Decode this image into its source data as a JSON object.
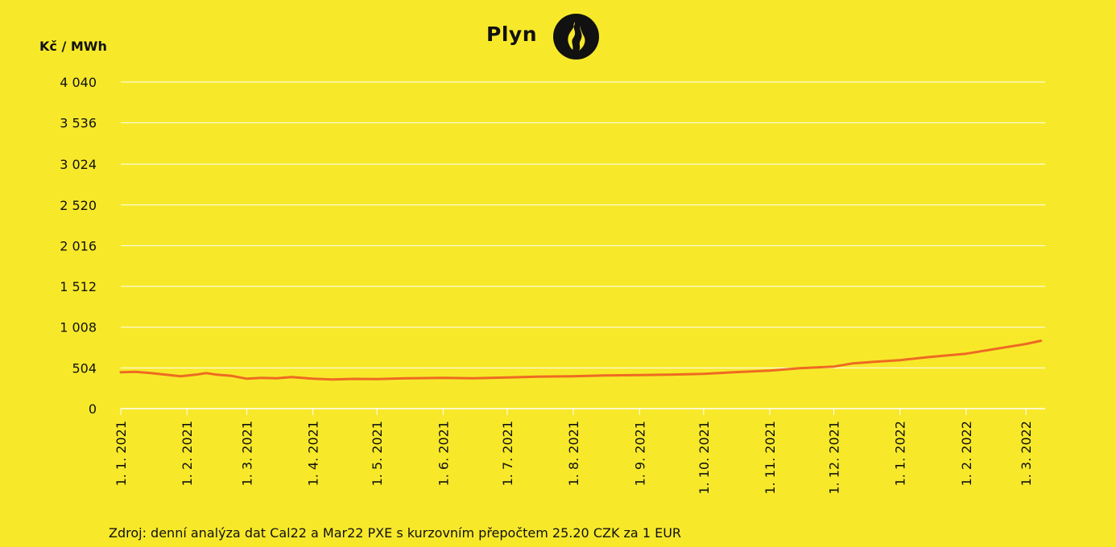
{
  "header": {
    "title": "Plyn",
    "unit_label": "Kč / MWh",
    "icon": "flame-icon"
  },
  "footer": {
    "source": "Zdroj: denní analýza dat Cal22 a Mar22 PXE s kurzovním přepočtem 25.20 CZK za 1 EUR"
  },
  "colors": {
    "background": "#F7E92A",
    "line": "#EE6A22",
    "grid": "#FFFFFF",
    "text": "#111111"
  },
  "chart_data": {
    "type": "line",
    "title": "Plyn",
    "ylabel": "Kč / MWh",
    "xlabel": "",
    "ylim": [
      0,
      4040
    ],
    "yticks": [
      0,
      504,
      1008,
      1512,
      2016,
      2520,
      3024,
      3536,
      4040
    ],
    "ytick_labels": [
      "0",
      "504",
      "1 008",
      "1 512",
      "2 016",
      "2 520",
      "3 024",
      "3 536",
      "4 040"
    ],
    "xlim": [
      "2021-01-01",
      "2022-03-10"
    ],
    "xticks": [
      "2021-01-01",
      "2021-02-01",
      "2021-03-01",
      "2021-04-01",
      "2021-05-01",
      "2021-06-01",
      "2021-07-01",
      "2021-08-01",
      "2021-09-01",
      "2021-10-01",
      "2021-11-01",
      "2021-12-01",
      "2022-01-01",
      "2022-02-01",
      "2022-03-01"
    ],
    "xtick_labels": [
      "1. 1. 2021",
      "1. 2. 2021",
      "1. 3. 2021",
      "1. 4. 2021",
      "1. 5. 2021",
      "1. 6. 2021",
      "1. 7. 2021",
      "1. 8. 2021",
      "1. 9. 2021",
      "1. 10. 2021",
      "1. 11. 2021",
      "1. 12. 2021",
      "1. 1. 2022",
      "1. 2. 2022",
      "1. 3. 2022"
    ],
    "grid": true,
    "series": [
      {
        "points": [
          [
            "2021-01-01",
            450
          ],
          [
            "2021-01-08",
            455
          ],
          [
            "2021-01-15",
            440
          ],
          [
            "2021-01-22",
            420
          ],
          [
            "2021-01-29",
            400
          ],
          [
            "2021-02-05",
            420
          ],
          [
            "2021-02-10",
            440
          ],
          [
            "2021-02-15",
            420
          ],
          [
            "2021-02-22",
            405
          ],
          [
            "2021-03-01",
            370
          ],
          [
            "2021-03-08",
            380
          ],
          [
            "2021-03-15",
            375
          ],
          [
            "2021-03-22",
            390
          ],
          [
            "2021-04-01",
            370
          ],
          [
            "2021-04-10",
            360
          ],
          [
            "2021-04-20",
            368
          ],
          [
            "2021-05-01",
            365
          ],
          [
            "2021-05-15",
            375
          ],
          [
            "2021-06-01",
            380
          ],
          [
            "2021-06-15",
            375
          ],
          [
            "2021-07-01",
            385
          ],
          [
            "2021-07-15",
            395
          ],
          [
            "2021-08-01",
            400
          ],
          [
            "2021-08-15",
            410
          ],
          [
            "2021-09-01",
            415
          ],
          [
            "2021-09-15",
            420
          ],
          [
            "2021-10-01",
            430
          ],
          [
            "2021-10-15",
            450
          ],
          [
            "2021-11-01",
            470
          ],
          [
            "2021-11-15",
            500
          ],
          [
            "2021-12-01",
            520
          ],
          [
            "2021-12-10",
            560
          ],
          [
            "2021-12-20",
            580
          ],
          [
            "2022-01-01",
            600
          ],
          [
            "2022-01-15",
            640
          ],
          [
            "2022-02-01",
            680
          ],
          [
            "2022-02-15",
            740
          ],
          [
            "2022-03-01",
            800
          ],
          [
            "2022-03-08",
            840
          ]
        ]
      }
    ]
  }
}
